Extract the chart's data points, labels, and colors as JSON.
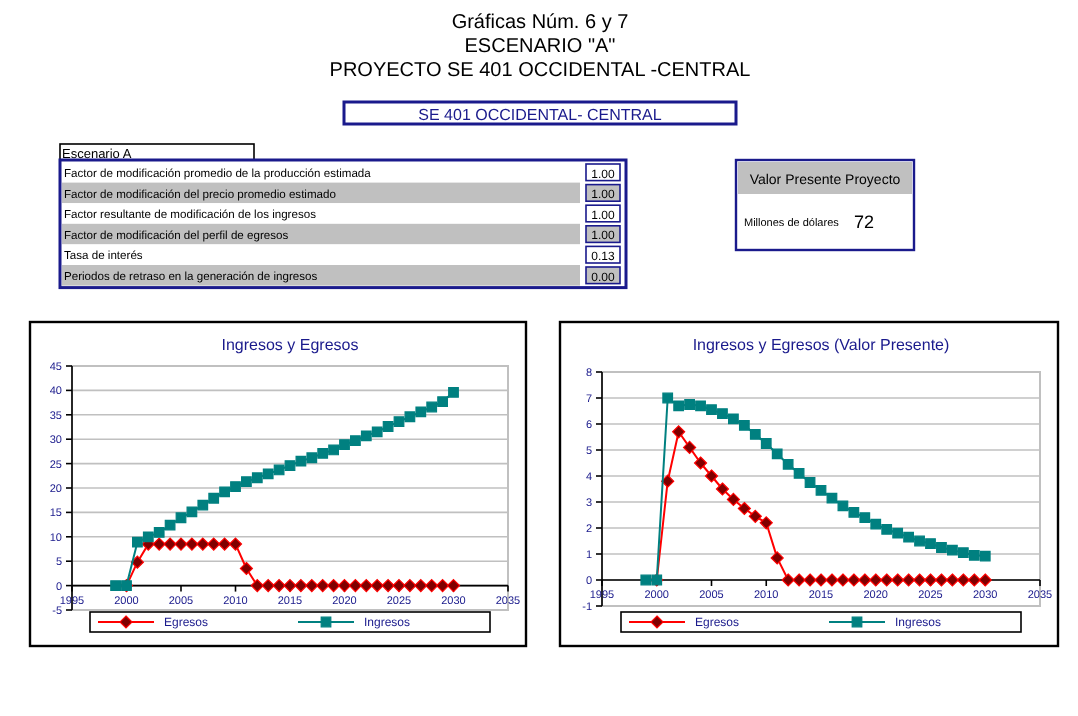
{
  "chart_data": [
    {
      "type": "other",
      "title": "Gráficas Núm. 6 y 7",
      "subtitle": "ESCENARIO \"A\"",
      "annotations": [
        "PROYECTO SE 401 OCCIDENTAL -CENTRAL",
        "SE 401 OCCIDENTAL- CENTRAL",
        "Escenario A",
        "Valor Presente Proyecto",
        "Millones de dólares",
        "72"
      ],
      "categories": [
        "Factor de modificación promedio de la producción estimada",
        "Factor de modificación del precio promedio estimado",
        "Factor resultante de modificación de los ingresos",
        "Factor de modificación del perfil de egresos",
        "Tasa de interés",
        "Periodos de retraso en la generación de ingresos"
      ],
      "value_labels": [
        "1.00",
        "1.00",
        "1.00",
        "1.00",
        "0.13",
        "0.00"
      ]
    },
    {
      "type": "line",
      "title": "Ingresos y Egresos",
      "xlim": [
        1995,
        2035
      ],
      "xticks": [
        1995,
        2000,
        2005,
        2010,
        2015,
        2020,
        2025,
        2030,
        2035
      ],
      "ylim": [
        -5,
        45
      ],
      "yticks": [
        -5,
        0,
        5,
        10,
        15,
        20,
        25,
        30,
        35,
        40,
        45
      ],
      "grid": "y",
      "legend": "bottom",
      "series": [
        {
          "name": "Egresos",
          "color": "#ff0000",
          "marker": "diamond",
          "x": [
            2000,
            2001,
            2002,
            2003,
            2004,
            2005,
            2006,
            2007,
            2008,
            2009,
            2010,
            2011,
            2012,
            2013,
            2014,
            2015,
            2016,
            2017,
            2018,
            2019,
            2020,
            2021,
            2022,
            2023,
            2024,
            2025,
            2026,
            2027,
            2028,
            2029,
            2030
          ],
          "values": [
            0,
            4.8,
            8.5,
            8.5,
            8.5,
            8.5,
            8.5,
            8.5,
            8.5,
            8.5,
            8.5,
            3.5,
            0,
            0,
            0,
            0,
            0,
            0,
            0,
            0,
            0,
            0,
            0,
            0,
            0,
            0,
            0,
            0,
            0,
            0,
            0
          ]
        },
        {
          "name": "Ingresos",
          "color": "#008080",
          "marker": "square",
          "x": [
            1999,
            2000,
            2001,
            2002,
            2003,
            2004,
            2005,
            2006,
            2007,
            2008,
            2009,
            2010,
            2011,
            2012,
            2013,
            2014,
            2015,
            2016,
            2017,
            2018,
            2019,
            2020,
            2021,
            2022,
            2023,
            2024,
            2025,
            2026,
            2027,
            2028,
            2029,
            2030
          ],
          "values": [
            0,
            0,
            8.9,
            10,
            10.9,
            12.4,
            13.9,
            15.1,
            16.5,
            17.9,
            19.2,
            20.3,
            21.3,
            22.1,
            22.9,
            23.7,
            24.6,
            25.5,
            26.2,
            27.1,
            27.8,
            28.9,
            29.7,
            30.7,
            31.5,
            32.6,
            33.6,
            34.6,
            35.6,
            36.6,
            37.7,
            39.6
          ]
        }
      ]
    },
    {
      "type": "line",
      "title": "Ingresos y Egresos (Valor Presente)",
      "xlim": [
        1995,
        2035
      ],
      "xticks": [
        1995,
        2000,
        2005,
        2010,
        2015,
        2020,
        2025,
        2030,
        2035
      ],
      "ylim": [
        -1,
        8
      ],
      "yticks": [
        -1,
        0,
        1,
        2,
        3,
        4,
        5,
        6,
        7,
        8
      ],
      "grid": "y",
      "legend": "bottom",
      "series": [
        {
          "name": "Egresos",
          "color": "#ff0000",
          "marker": "diamond",
          "x": [
            2000,
            2001,
            2002,
            2003,
            2004,
            2005,
            2006,
            2007,
            2008,
            2009,
            2010,
            2011,
            2012,
            2013,
            2014,
            2015,
            2016,
            2017,
            2018,
            2019,
            2020,
            2021,
            2022,
            2023,
            2024,
            2025,
            2026,
            2027,
            2028,
            2029,
            2030
          ],
          "values": [
            0,
            3.8,
            5.7,
            5.1,
            4.5,
            4,
            3.5,
            3.1,
            2.75,
            2.45,
            2.2,
            0.85,
            0,
            0,
            0,
            0,
            0,
            0,
            0,
            0,
            0,
            0,
            0,
            0,
            0,
            0,
            0,
            0,
            0,
            0,
            0
          ]
        },
        {
          "name": "Ingresos",
          "color": "#008080",
          "marker": "square",
          "x": [
            1999,
            2000,
            2001,
            2002,
            2003,
            2004,
            2005,
            2006,
            2007,
            2008,
            2009,
            2010,
            2011,
            2012,
            2013,
            2014,
            2015,
            2016,
            2017,
            2018,
            2019,
            2020,
            2021,
            2022,
            2023,
            2024,
            2025,
            2026,
            2027,
            2028,
            2029,
            2030
          ],
          "values": [
            0,
            0,
            7,
            6.7,
            6.75,
            6.7,
            6.55,
            6.4,
            6.2,
            5.95,
            5.6,
            5.25,
            4.85,
            4.45,
            4.1,
            3.75,
            3.45,
            3.15,
            2.85,
            2.6,
            2.4,
            2.15,
            1.95,
            1.8,
            1.65,
            1.5,
            1.4,
            1.25,
            1.15,
            1.05,
            0.95,
            0.92
          ]
        }
      ]
    }
  ]
}
